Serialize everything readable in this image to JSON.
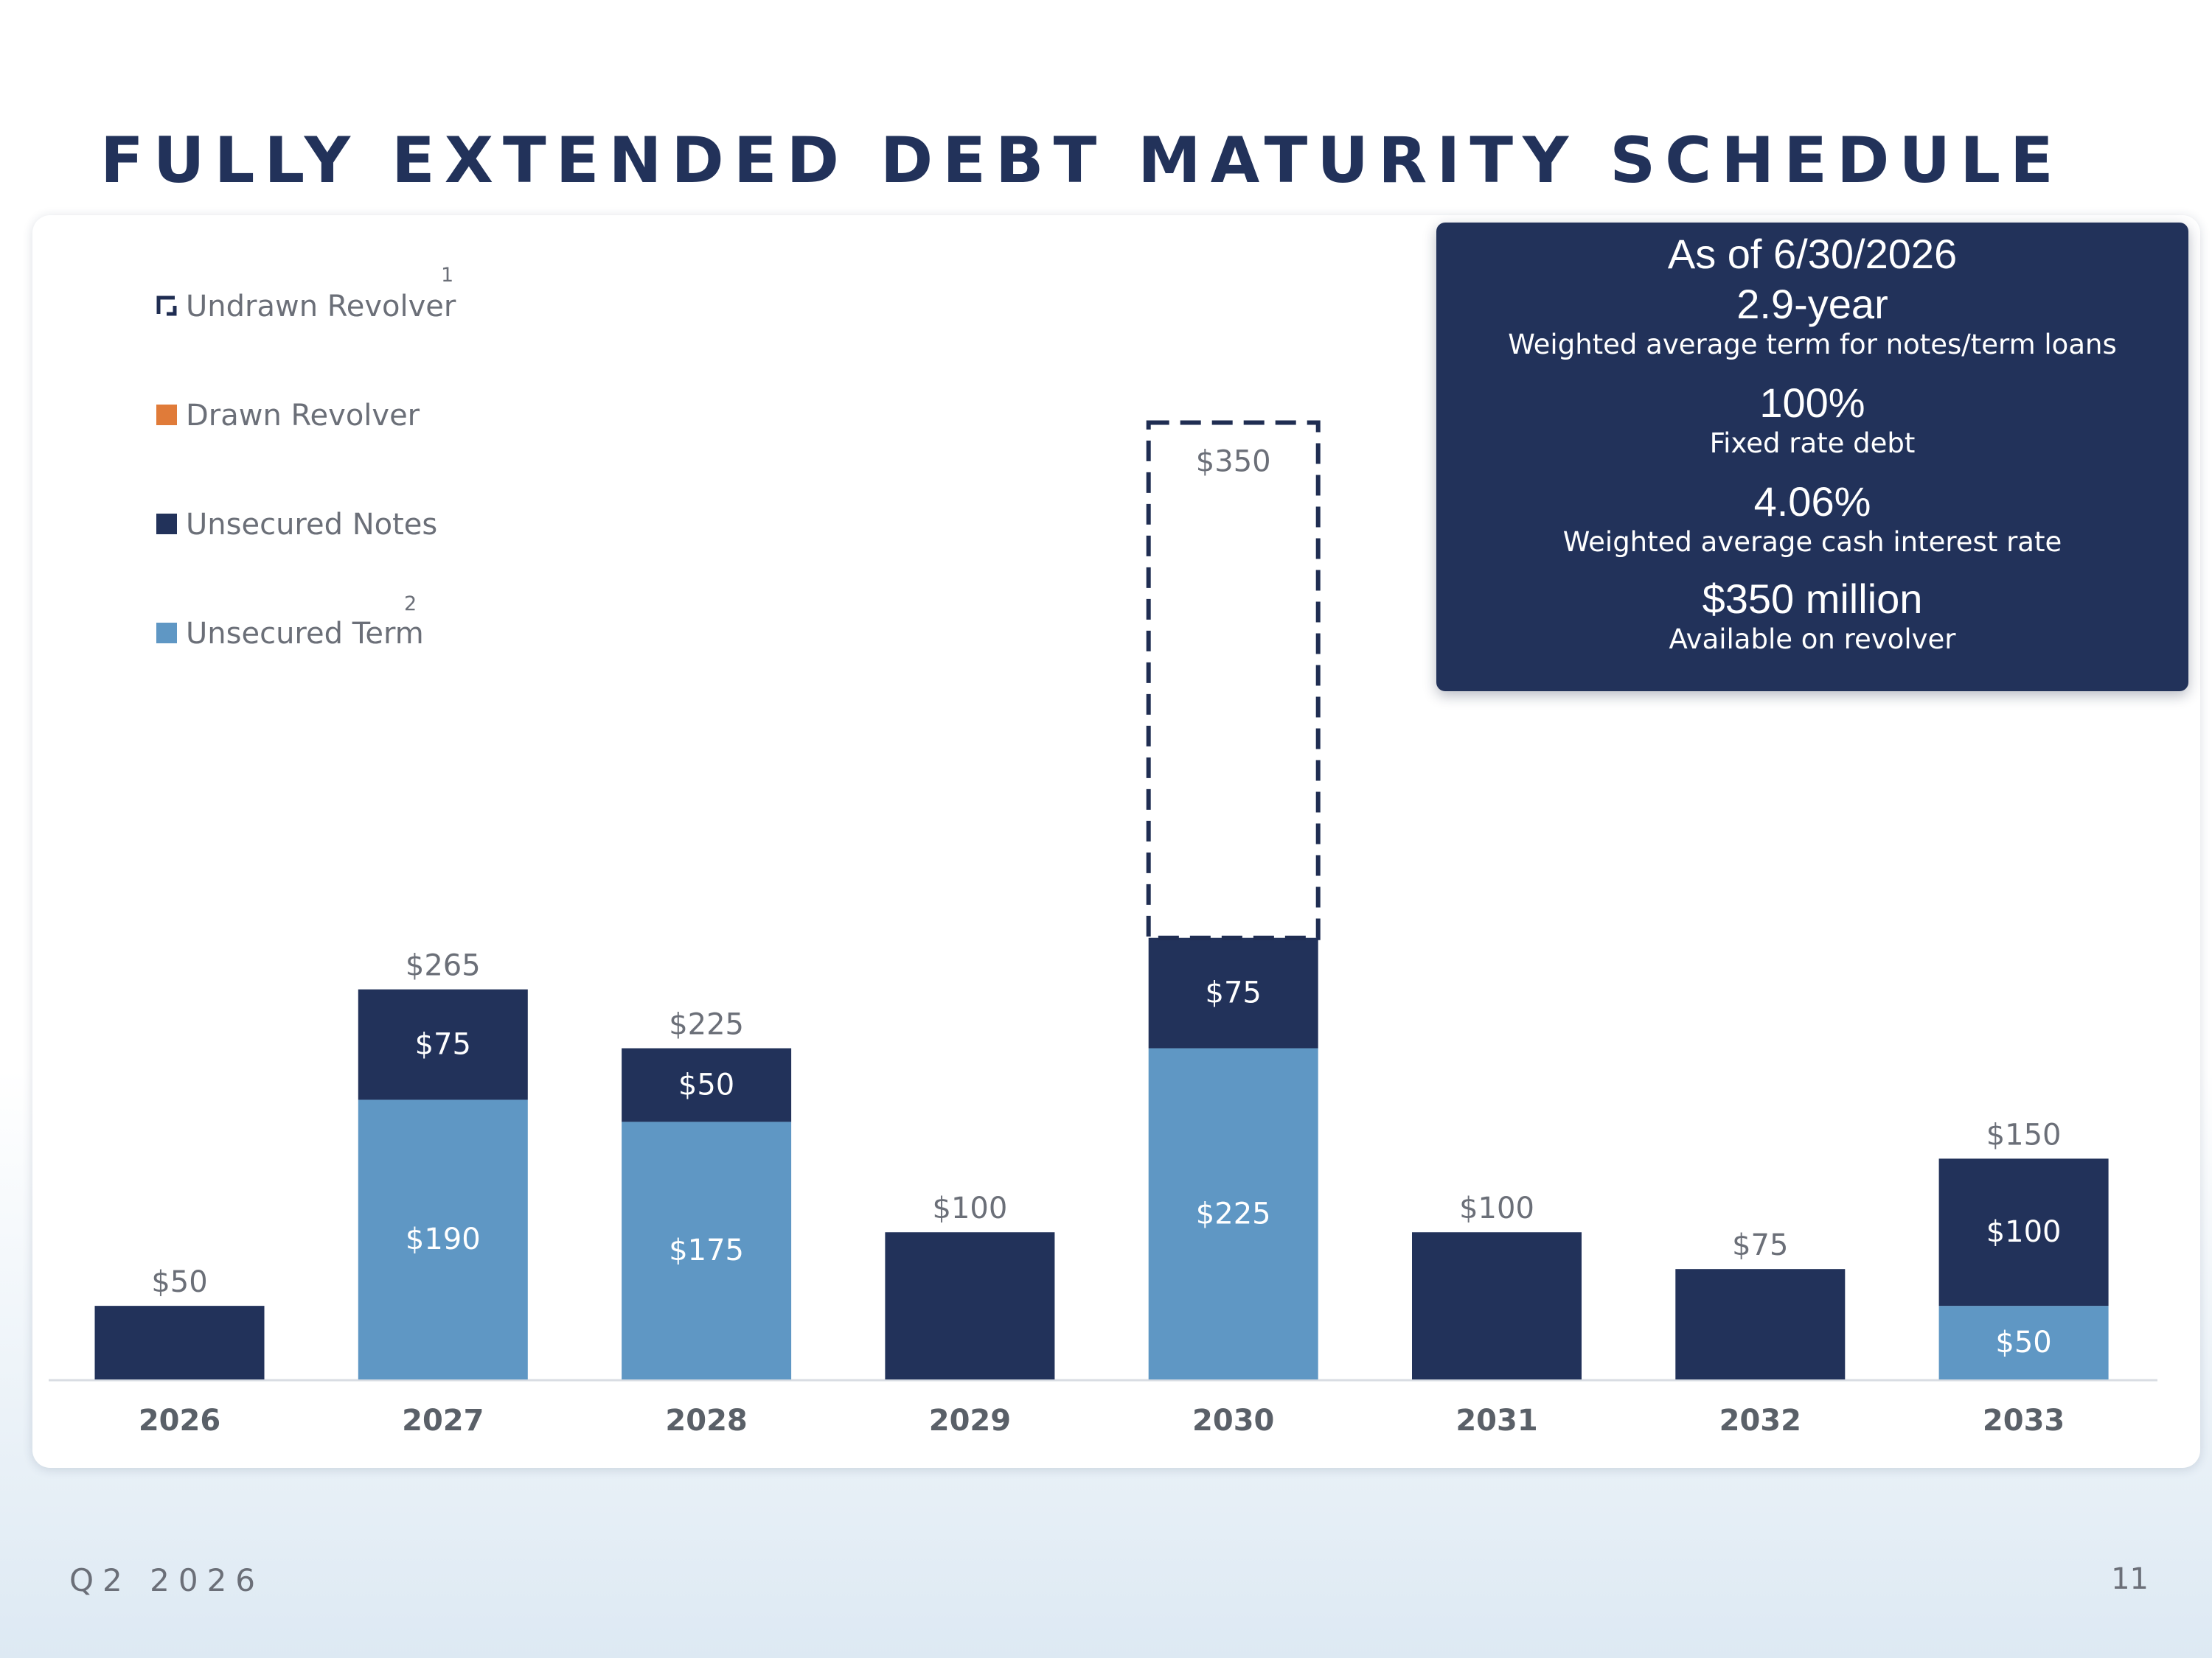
{
  "title": "FULLY EXTENDED DEBT MATURITY SCHEDULE",
  "footer": {
    "period": "Q2 2026",
    "page_number": "11"
  },
  "colors": {
    "undrawn_revolver": "#1f2d52",
    "drawn_revolver": "#e07b39",
    "unsecured_notes": "#22325a",
    "unsecured_term": "#5f97c4",
    "axis_label": "#5a6068",
    "total_label": "#6b6f78"
  },
  "legend": [
    {
      "key": "undrawn_revolver",
      "label": "Undrawn Revolver",
      "footnote": "1",
      "icon": "hollow-dashed-square"
    },
    {
      "key": "drawn_revolver",
      "label": "Drawn Revolver",
      "footnote": "",
      "icon": "square"
    },
    {
      "key": "unsecured_notes",
      "label": "Unsecured Notes",
      "footnote": "",
      "icon": "square"
    },
    {
      "key": "unsecured_term",
      "label": "Unsecured Term",
      "footnote": "2",
      "icon": "square"
    }
  ],
  "stats": {
    "as_of": "As of 6/30/2026",
    "term_value": "2.9-year",
    "term_label": "Weighted average term for notes/term loans",
    "fixed_value": "100%",
    "fixed_label": "Fixed rate debt",
    "rate_value": "4.06%",
    "rate_label": "Weighted average cash interest rate",
    "revolver_value": "$350 million",
    "revolver_label": "Available on revolver"
  },
  "chart_data": {
    "type": "bar",
    "stacked": true,
    "categories": [
      "2026",
      "2027",
      "2028",
      "2029",
      "2030",
      "2031",
      "2032",
      "2033"
    ],
    "series": [
      {
        "name": "Unsecured Term",
        "key": "unsecured_term",
        "values": [
          0,
          190,
          175,
          0,
          225,
          0,
          0,
          50
        ]
      },
      {
        "name": "Unsecured Notes",
        "key": "unsecured_notes",
        "values": [
          50,
          75,
          50,
          100,
          75,
          100,
          75,
          100
        ]
      },
      {
        "name": "Drawn Revolver",
        "key": "drawn_revolver",
        "values": [
          0,
          0,
          0,
          0,
          0,
          0,
          0,
          0
        ]
      },
      {
        "name": "Undrawn Revolver",
        "key": "undrawn_revolver",
        "values": [
          0,
          0,
          0,
          0,
          350,
          0,
          0,
          0
        ]
      }
    ],
    "segment_labels": {
      "unsecured_term": [
        "",
        "$190",
        "$175",
        "",
        "$225",
        "",
        "",
        "$50"
      ],
      "unsecured_notes": [
        "",
        "$75",
        "$50",
        "",
        "$75",
        "",
        "",
        "$100"
      ],
      "undrawn_revolver": [
        "",
        "",
        "",
        "",
        "$350",
        "",
        "",
        ""
      ]
    },
    "totals": [
      "$50",
      "$265",
      "$225",
      "$100",
      "",
      "$100",
      "$75",
      "$150"
    ],
    "ylim": [
      0,
      650
    ],
    "xlabel": "",
    "ylabel": "",
    "grid": false,
    "legend_position": "top-left"
  }
}
